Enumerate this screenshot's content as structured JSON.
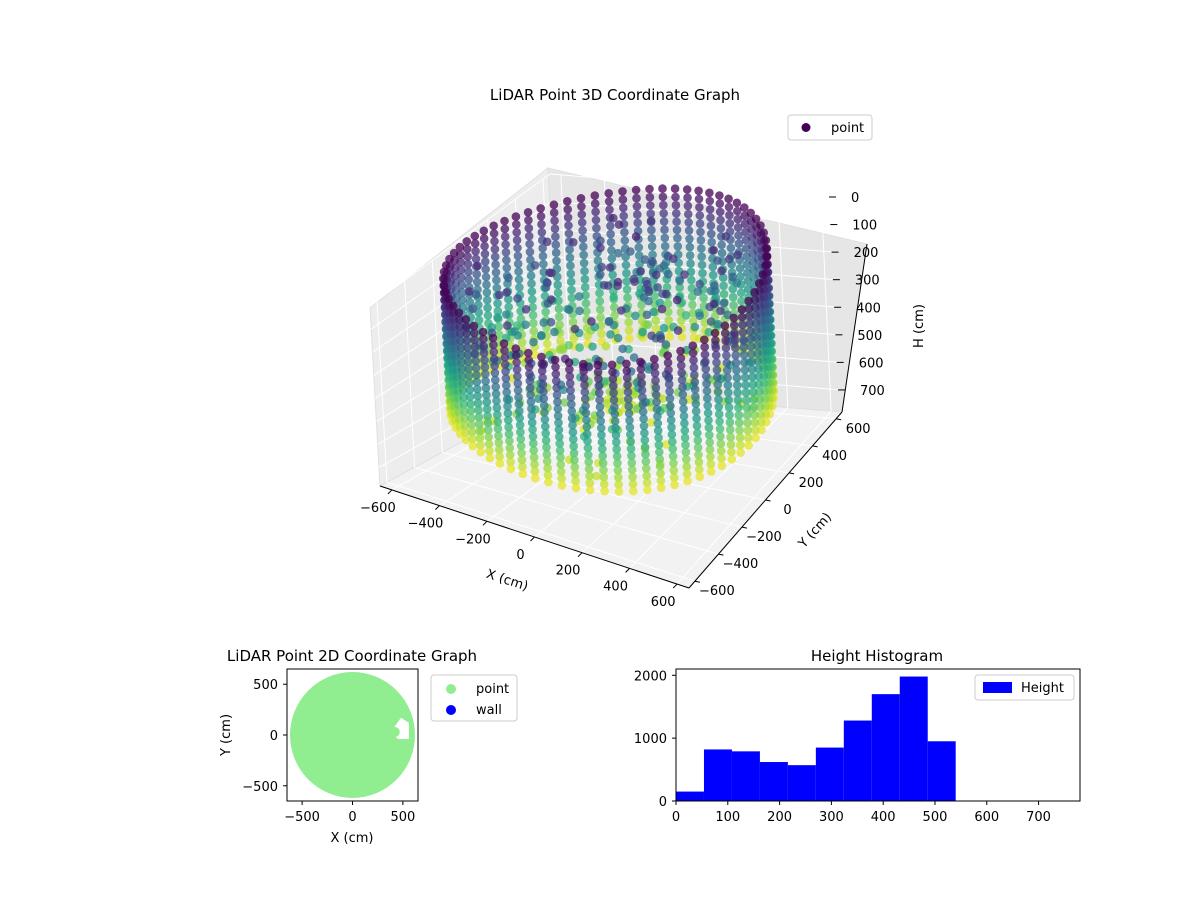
{
  "chart_data": [
    {
      "type": "scatter",
      "projection": "3d",
      "title": "LiDAR Point 3D Coordinate Graph",
      "xlabel": "X (cm)",
      "ylabel": "Y (cm)",
      "zlabel": "H (cm)",
      "xlim": [
        -650,
        650
      ],
      "ylim": [
        -650,
        650
      ],
      "zlim": [
        780,
        0
      ],
      "z_inverted": true,
      "colormap": "viridis",
      "x_ticks": [
        "−600",
        "−400",
        "−200",
        "0",
        "200",
        "400",
        "600"
      ],
      "y_ticks": [
        "−600",
        "−400",
        "−200",
        "0",
        "200",
        "400",
        "600"
      ],
      "z_ticks": [
        "0",
        "100",
        "200",
        "300",
        "400",
        "500",
        "600",
        "700"
      ],
      "legend": [
        {
          "label": "point",
          "color": "#440154"
        }
      ],
      "legend_position": "top-right",
      "series": [
        {
          "name": "point",
          "shape": "ring of points around the room perimeter, radius ~620 cm, heights 0-540 cm, plus interior clusters",
          "ring_radius": 620,
          "ring_height": [
            0,
            540
          ]
        }
      ],
      "grid": true
    },
    {
      "type": "scatter",
      "title": "LiDAR Point 2D Coordinate Graph",
      "xlabel": "X (cm)",
      "ylabel": "Y (cm)",
      "xlim": [
        -650,
        650
      ],
      "ylim": [
        -650,
        650
      ],
      "x_ticks": [
        "−500",
        "0",
        "500"
      ],
      "y_ticks": [
        "−500",
        "0",
        "500"
      ],
      "legend": [
        {
          "label": "point",
          "color": "#90ee90"
        },
        {
          "label": "wall",
          "color": "#0000ff"
        }
      ],
      "legend_position": "outside-right",
      "series": [
        {
          "name": "point",
          "color": "#90ee90",
          "shape": "filled disc of radius ~620 cm"
        },
        {
          "name": "wall",
          "color": "#0000ff"
        }
      ]
    },
    {
      "type": "bar",
      "kind": "histogram",
      "title": "Height Histogram",
      "color": "#0000ff",
      "legend": [
        {
          "label": "Height",
          "color": "#0000ff"
        }
      ],
      "legend_position": "top-right",
      "xlim": [
        0,
        780
      ],
      "ylim": [
        0,
        2100
      ],
      "x_ticks": [
        "0",
        "100",
        "200",
        "300",
        "400",
        "500",
        "600",
        "700"
      ],
      "y_ticks": [
        "0",
        "1000",
        "2000"
      ],
      "bin_edges": [
        0,
        54,
        108,
        162,
        216,
        270,
        324,
        378,
        432,
        486,
        540
      ],
      "values": [
        150,
        820,
        790,
        620,
        570,
        850,
        1280,
        1700,
        1980,
        950
      ]
    }
  ]
}
